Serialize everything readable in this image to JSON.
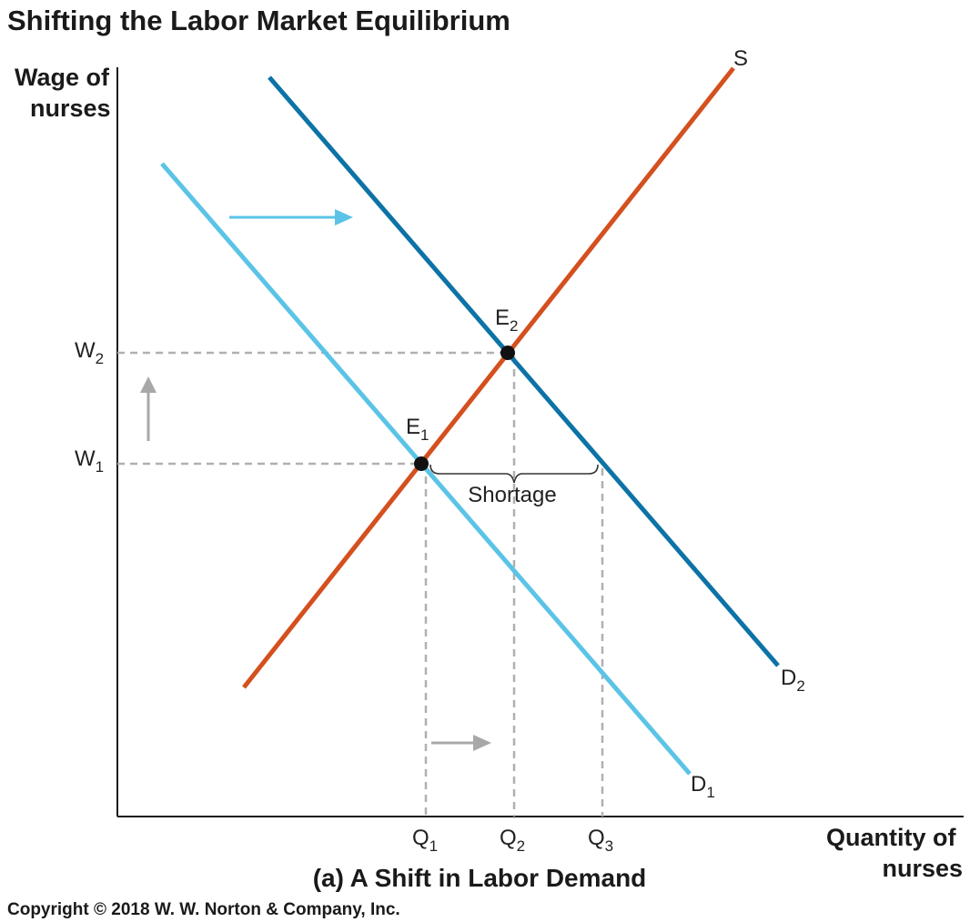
{
  "title": "Shifting the Labor Market Equilibrium",
  "caption": "(a) A Shift in Labor Demand",
  "copyright": "Copyright © 2018 W. W. Norton & Company, Inc.",
  "y_axis_label": [
    "Wage of",
    "nurses"
  ],
  "x_axis_label": [
    "Quantity of",
    "nurses"
  ],
  "curves": {
    "supply": {
      "label": "S",
      "color": "#d4501e"
    },
    "demand1": {
      "label": "D",
      "sub": "1",
      "color": "#5bc4e6"
    },
    "demand2": {
      "label": "D",
      "sub": "2",
      "color": "#0d73a6"
    }
  },
  "points": {
    "e1": {
      "label": "E",
      "sub": "1"
    },
    "e2": {
      "label": "E",
      "sub": "2"
    }
  },
  "wages": {
    "w1": {
      "label": "W",
      "sub": "1"
    },
    "w2": {
      "label": "W",
      "sub": "2"
    }
  },
  "quantities": {
    "q1": {
      "label": "Q",
      "sub": "1"
    },
    "q2": {
      "label": "Q",
      "sub": "2"
    },
    "q3": {
      "label": "Q",
      "sub": "3"
    }
  },
  "shortage_label": "Shortage",
  "colors": {
    "guide": "#b0b0b0",
    "arrow_gray": "#a8a8a8",
    "arrow_blue": "#5bc4e6",
    "axis": "#1a1a1a"
  }
}
